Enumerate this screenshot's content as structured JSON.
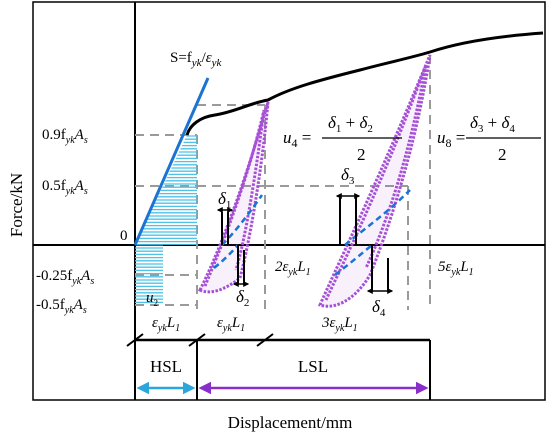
{
  "axes": {
    "y_label": "Force/kN",
    "x_label": "Displacement/mm"
  },
  "y_ticks": {
    "t09": "0.9f",
    "t05": "0.5f",
    "t0": "0",
    "tm025": "-0.25f",
    "tm05": "-0.5f"
  },
  "stiffness_label": "S=f",
  "formulas": {
    "u4_lhs": "u",
    "u4_sub": "4",
    "u4_num": "δ",
    "u4_den": "2",
    "u8_lhs": "u",
    "u8_sub": "8",
    "u8_den": "2"
  },
  "x_marks": {
    "m1": "ε",
    "m2": "ε",
    "m3": "2ε",
    "m4": "3ε",
    "m5": "5ε"
  },
  "deltas": {
    "d1": "δ",
    "d2": "δ",
    "d3": "δ",
    "d4": "δ"
  },
  "u_label": "u",
  "stages": {
    "hsl": "HSL",
    "lsl": "LSL"
  },
  "colors": {
    "envelope": "#000000",
    "loops": "#a64fd6",
    "stiffness": "#1b74d1",
    "hatch": "#4ec3e8",
    "guides": "#9a9a9a",
    "hsl_arrow": "#2aa6dc",
    "lsl_arrow": "#8a2ec9"
  }
}
